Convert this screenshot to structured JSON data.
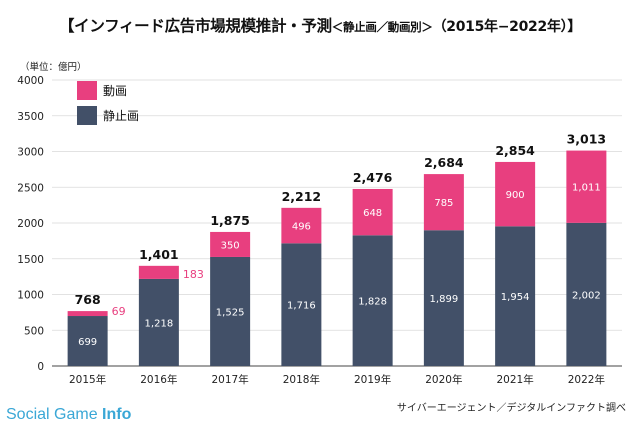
{
  "chart_data": {
    "type": "bar",
    "stacked": true,
    "title": "【インフィード広告市場規模推計・予測",
    "title_sub": "＜静止画／動画別＞",
    "title_years": "（2015年−2022年）】",
    "unit_label": "（単位：億円）",
    "categories": [
      "2015年",
      "2016年",
      "2017年",
      "2018年",
      "2019年",
      "2020年",
      "2021年",
      "2022年"
    ],
    "series": [
      {
        "name": "静止画",
        "color": "#425068",
        "values": [
          699,
          1218,
          1525,
          1716,
          1828,
          1899,
          1954,
          2002
        ],
        "labels": [
          "699",
          "1,218",
          "1,525",
          "1,716",
          "1,828",
          "1,899",
          "1,954",
          "2,002"
        ]
      },
      {
        "name": "動画",
        "color": "#e83f7f",
        "values": [
          69,
          183,
          350,
          496,
          648,
          785,
          900,
          1011
        ],
        "labels": [
          "69",
          "183",
          "350",
          "496",
          "648",
          "785",
          "900",
          "1,011"
        ]
      }
    ],
    "totals": [
      "768",
      "1,401",
      "1,875",
      "2,212",
      "2,476",
      "2,684",
      "2,854",
      "3,013"
    ],
    "total_values": [
      768,
      1401,
      1875,
      2212,
      2476,
      2684,
      2854,
      3013
    ],
    "yticks": [
      "0",
      "500",
      "1000",
      "1500",
      "2000",
      "2500",
      "3000",
      "3500",
      "4000"
    ],
    "ylim": [
      0,
      4000
    ],
    "ystep": 500,
    "grid": true,
    "legend": "top-left"
  },
  "source": "サイバーエージェント／デジタルインファクト調べ",
  "brand": {
    "part1": "Social Game ",
    "part2": "Info"
  },
  "colors": {
    "still": "#425068",
    "video": "#e83f7f",
    "brand": "#3aa7d6"
  }
}
